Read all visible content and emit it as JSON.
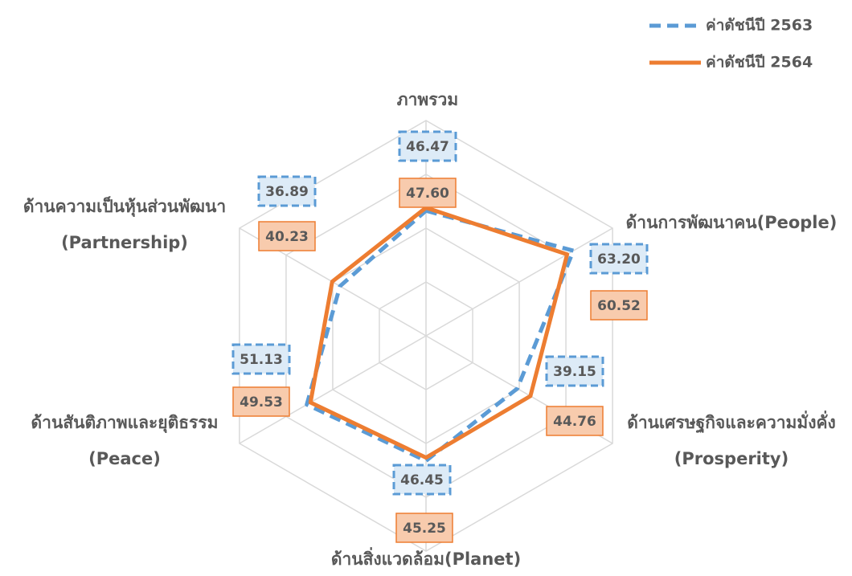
{
  "chart_data": {
    "type": "radar",
    "categories": [
      [
        "ภาพรวม"
      ],
      [
        "ด้านการพัฒนาคน(People)"
      ],
      [
        "ด้านเศรษฐกิจและความมั่งคั่ง",
        "(Prosperity)"
      ],
      [
        "ด้านสิ่งแวดล้อม(Planet)"
      ],
      [
        "ด้านสันติภาพและยุติธรรม",
        "(Peace)"
      ],
      [
        "ด้านความเป็นหุ้นส่วนพัฒนา",
        "(Partnership)"
      ]
    ],
    "series": [
      {
        "name": "ค่าดัชนีปี 2563",
        "color": "#5b9bd5",
        "dashed": true,
        "values": [
          46.47,
          63.2,
          39.15,
          46.45,
          51.13,
          36.89
        ],
        "value_labels": [
          "46.47",
          "63.20",
          "39.15",
          "46.45",
          "51.13",
          "36.89"
        ]
      },
      {
        "name": "ค่าดัชนีปี 2564",
        "color": "#ed7d31",
        "dashed": false,
        "values": [
          47.6,
          60.52,
          44.76,
          45.25,
          49.53,
          40.23
        ],
        "value_labels": [
          "47.60",
          "60.52",
          "44.76",
          "45.25",
          "49.53",
          "40.23"
        ]
      }
    ],
    "rlim": [
      0,
      80
    ],
    "rticks": [
      0,
      20,
      40,
      60,
      80
    ],
    "grid": true,
    "legend": "top-right"
  }
}
